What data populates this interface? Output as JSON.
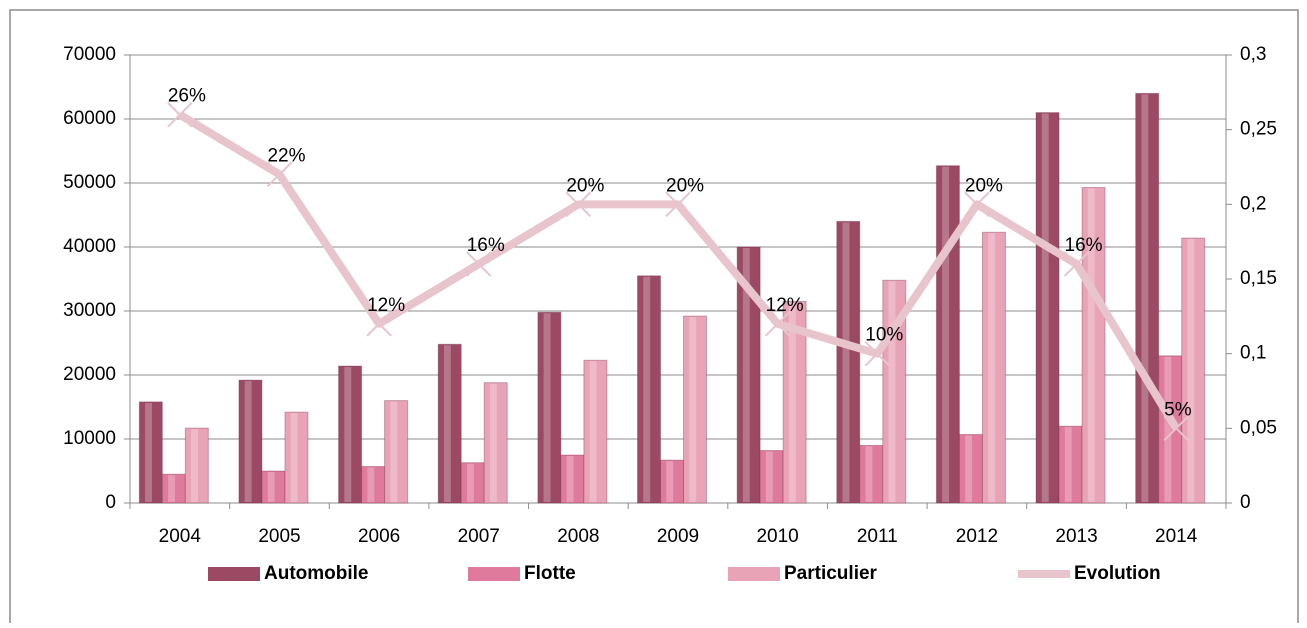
{
  "chart_data": {
    "type": "bar",
    "categories": [
      "2004",
      "2005",
      "2006",
      "2007",
      "2008",
      "2009",
      "2010",
      "2011",
      "2012",
      "2013",
      "2014"
    ],
    "series": [
      {
        "name": "Automobile",
        "color": "#9c4a64",
        "values": [
          15800,
          19200,
          21400,
          24800,
          29800,
          35500,
          40000,
          44000,
          52700,
          61000,
          64000
        ]
      },
      {
        "name": "Flotte",
        "color": "#df7a9c",
        "values": [
          4500,
          5000,
          5700,
          6300,
          7500,
          6700,
          8200,
          9000,
          10700,
          12000,
          23000
        ]
      },
      {
        "name": "Particulier",
        "color": "#e9a3b7",
        "values": [
          11700,
          14200,
          16000,
          18800,
          22300,
          29200,
          31500,
          34800,
          42300,
          49300,
          41400
        ]
      },
      {
        "name": "Evolution",
        "type": "line",
        "axis": "y2",
        "color": "#e8c4cd",
        "values": [
          0.26,
          0.22,
          0.12,
          0.16,
          0.2,
          0.2,
          0.12,
          0.1,
          0.2,
          0.16,
          0.05
        ],
        "value_labels": [
          "26%",
          "22%",
          "12%",
          "16%",
          "20%",
          "20%",
          "12%",
          "10%",
          "20%",
          "16%",
          "5%"
        ]
      }
    ],
    "ylim": [
      0,
      70000
    ],
    "yticks": [
      0,
      10000,
      20000,
      30000,
      40000,
      50000,
      60000,
      70000
    ],
    "y2lim": [
      0,
      0.3
    ],
    "y2ticks": [
      0,
      {
        "value": 0.05,
        "label": "0,05"
      },
      {
        "value": 0.1,
        "label": "0,1"
      },
      {
        "value": 0.15,
        "label": "0,15"
      },
      {
        "value": 0.2,
        "label": "0,2"
      },
      {
        "value": 0.25,
        "label": "0,25"
      },
      {
        "value": 0.3,
        "label": "0,3"
      }
    ],
    "grid": true,
    "legend": "bottom"
  }
}
